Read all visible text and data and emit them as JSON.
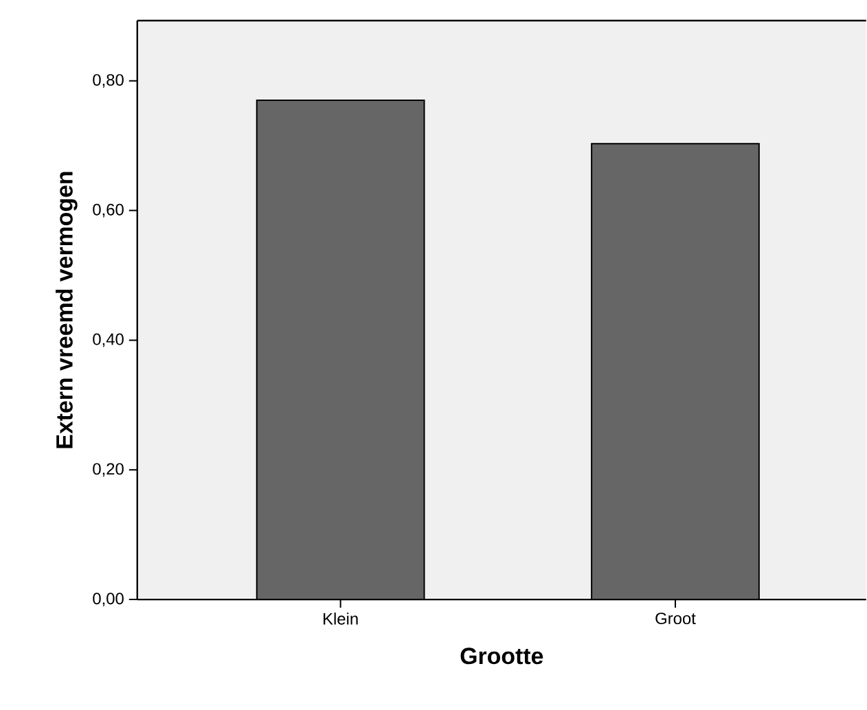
{
  "chart_data": {
    "type": "bar",
    "xlabel": "Grootte",
    "ylabel": "Extern vreemd vermogen",
    "categories": [
      "Klein",
      "Groot"
    ],
    "values": [
      0.77,
      0.703
    ],
    "color": "#666666",
    "ylim": [
      0,
      0.893
    ],
    "yticks": [
      {
        "value": 0,
        "label": "0,00"
      },
      {
        "value": 0.2,
        "label": "0,20"
      },
      {
        "value": 0.4,
        "label": "0,40"
      },
      {
        "value": 0.6,
        "label": "0,60"
      },
      {
        "value": 0.8,
        "label": "0,80"
      }
    ],
    "grid": false
  }
}
